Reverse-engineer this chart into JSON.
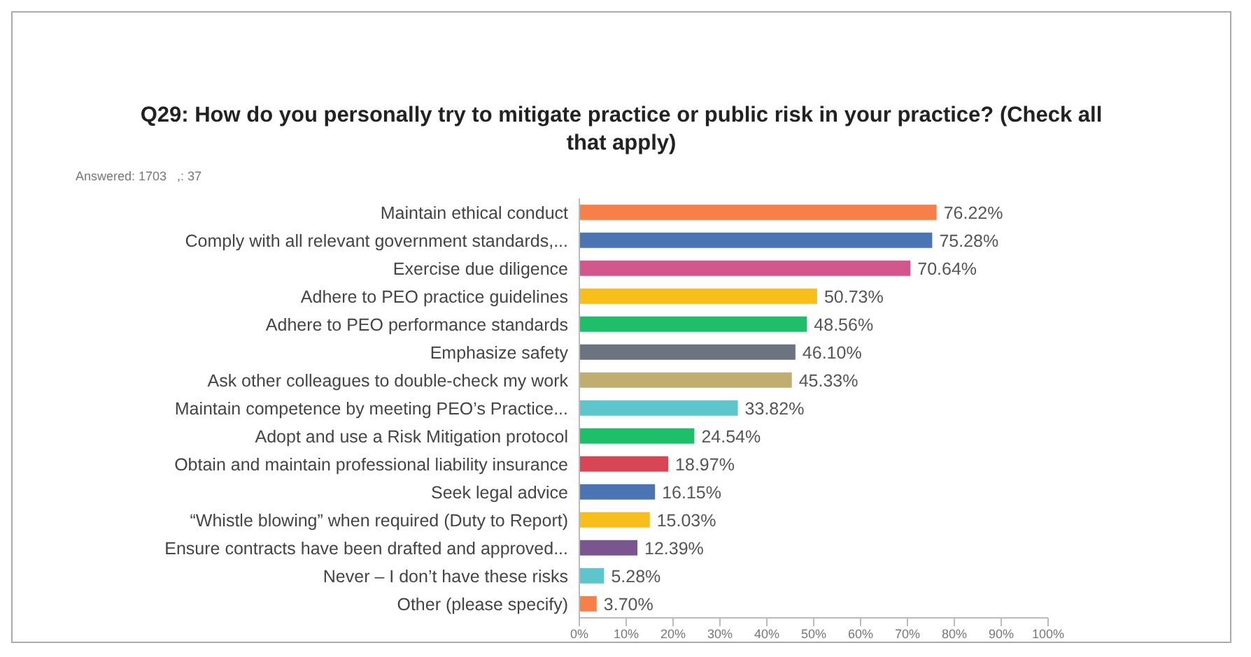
{
  "chart_data": {
    "type": "bar",
    "orientation": "horizontal",
    "title": "Q29: How do you personally try to mitigate practice or public risk in your practice? (Check all that apply)",
    "subtitle": "Answered: 1703   ,: 37",
    "categories": [
      "Maintain ethical conduct",
      "Comply with all relevant government standards,...",
      "Exercise due diligence",
      "Adhere to PEO practice guidelines",
      "Adhere to PEO performance standards",
      "Emphasize safety",
      "Ask other colleagues to double-check my work",
      "Maintain competence by meeting PEO’s Practice...",
      "Adopt and use a Risk Mitigation protocol",
      "Obtain and maintain professional liability insurance",
      "Seek legal advice",
      "“Whistle blowing” when required (Duty to Report)",
      "Ensure contracts have been drafted and approved...",
      "Never – I don’t have these risks",
      "Other (please specify)"
    ],
    "values": [
      76.22,
      75.28,
      70.64,
      50.73,
      48.56,
      46.1,
      45.33,
      33.82,
      24.54,
      18.97,
      16.15,
      15.03,
      12.39,
      5.28,
      3.7
    ],
    "value_labels": [
      "76.22%",
      "75.28%",
      "70.64%",
      "50.73%",
      "48.56%",
      "46.10%",
      "45.33%",
      "33.82%",
      "24.54%",
      "18.97%",
      "16.15%",
      "15.03%",
      "12.39%",
      "5.28%",
      "3.70%"
    ],
    "colors": [
      "#f7804a",
      "#4a74b4",
      "#d1568c",
      "#f8be1b",
      "#1ebe6a",
      "#6b7480",
      "#bfae70",
      "#5cc6cc",
      "#1ebe6a",
      "#d84656",
      "#4a74b4",
      "#f8be1b",
      "#7b558f",
      "#5cc6cc",
      "#f7804a"
    ],
    "xlim": [
      0,
      100
    ],
    "xticks": [
      {
        "value": 0,
        "label": "0%"
      },
      {
        "value": 10,
        "label": "10%"
      },
      {
        "value": 20,
        "label": "20%"
      },
      {
        "value": 30,
        "label": "30%"
      },
      {
        "value": 40,
        "label": "40%"
      },
      {
        "value": 50,
        "label": "50%"
      },
      {
        "value": 60,
        "label": "60%"
      },
      {
        "value": 70,
        "label": "70%"
      },
      {
        "value": 80,
        "label": "80%"
      },
      {
        "value": 90,
        "label": "90%"
      },
      {
        "value": 100,
        "label": "100%"
      }
    ],
    "grid": false,
    "legend": false
  }
}
